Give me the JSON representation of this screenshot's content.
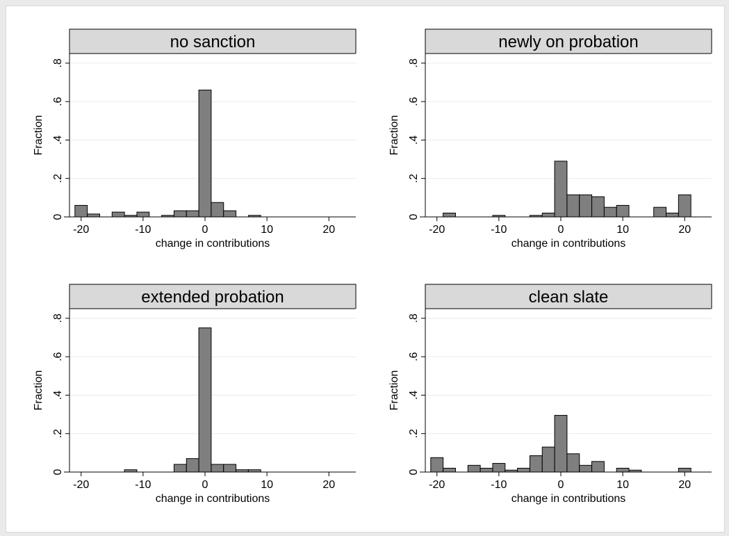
{
  "chart_data": {
    "type": "bar",
    "layout": "2x2 histogram grid",
    "xlabel": "change in contributions",
    "ylabel": "Fraction",
    "xlim": [
      -23,
      23
    ],
    "ylim": [
      0,
      0.85
    ],
    "xticks": [
      -20,
      -10,
      0,
      10,
      20
    ],
    "xtick_labels": [
      "-20",
      "-10",
      "0",
      "10",
      "20"
    ],
    "yticks": [
      0,
      0.2,
      0.4,
      0.6,
      0.8
    ],
    "ytick_labels": [
      "0",
      ".2",
      ".4",
      ".6",
      ".8"
    ],
    "bin_width": 2,
    "bin_centers": [
      -20,
      -18,
      -16,
      -14,
      -12,
      -10,
      -8,
      -6,
      -4,
      -2,
      0,
      2,
      4,
      6,
      8,
      10,
      12,
      14,
      16,
      18,
      20
    ],
    "grid": "horizontal",
    "bar_color": "#7f7f7f",
    "panels": [
      {
        "title": "no sanction",
        "values": [
          0.06,
          0.015,
          0,
          0.025,
          0.008,
          0.025,
          0,
          0.008,
          0.032,
          0.032,
          0.66,
          0.075,
          0.032,
          0,
          0.008,
          0,
          0,
          0,
          0,
          0,
          0
        ]
      },
      {
        "title": "newly on probation",
        "values": [
          0,
          0.02,
          0,
          0,
          0,
          0.008,
          0,
          0,
          0.008,
          0.02,
          0.29,
          0.115,
          0.115,
          0.105,
          0.05,
          0.06,
          0,
          0,
          0.05,
          0.02,
          0.115
        ]
      },
      {
        "title": "extended probation",
        "values": [
          0,
          0,
          0,
          0,
          0.012,
          0,
          0,
          0,
          0.04,
          0.07,
          0.75,
          0.04,
          0.04,
          0.012,
          0.012,
          0,
          0,
          0,
          0,
          0,
          0
        ]
      },
      {
        "title": "clean slate",
        "values": [
          0.075,
          0.02,
          0,
          0.035,
          0.02,
          0.045,
          0.01,
          0.02,
          0.085,
          0.13,
          0.295,
          0.095,
          0.035,
          0.055,
          0,
          0.02,
          0.01,
          0,
          0,
          0,
          0.02
        ]
      }
    ]
  }
}
